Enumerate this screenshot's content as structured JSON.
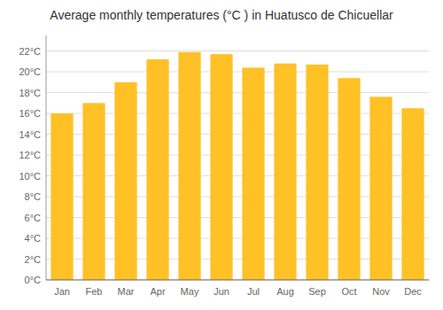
{
  "chart_data": {
    "type": "bar",
    "title": "Average monthly temperatures (°C ) in Huatusco de Chicuellar",
    "categories": [
      "Jan",
      "Feb",
      "Mar",
      "Apr",
      "May",
      "Jun",
      "Jul",
      "Aug",
      "Sep",
      "Oct",
      "Nov",
      "Dec"
    ],
    "values": [
      16.0,
      17.0,
      19.0,
      21.2,
      21.9,
      21.7,
      20.4,
      20.8,
      20.7,
      19.4,
      17.6,
      16.5
    ],
    "color": "#FFC125",
    "ylim": [
      0,
      23.5
    ],
    "yticks": [
      {
        "value": 0,
        "label": "0°C"
      },
      {
        "value": 2,
        "label": "2°C"
      },
      {
        "value": 4,
        "label": "4°C"
      },
      {
        "value": 6,
        "label": "6°C"
      },
      {
        "value": 8,
        "label": "8°C"
      },
      {
        "value": 10,
        "label": "10°C"
      },
      {
        "value": 12,
        "label": "12°C"
      },
      {
        "value": 14,
        "label": "14°C"
      },
      {
        "value": 16,
        "label": "16°C"
      },
      {
        "value": 18,
        "label": "18°C"
      },
      {
        "value": 20,
        "label": "20°C"
      },
      {
        "value": 22,
        "label": "22°C"
      }
    ],
    "grid": true
  }
}
